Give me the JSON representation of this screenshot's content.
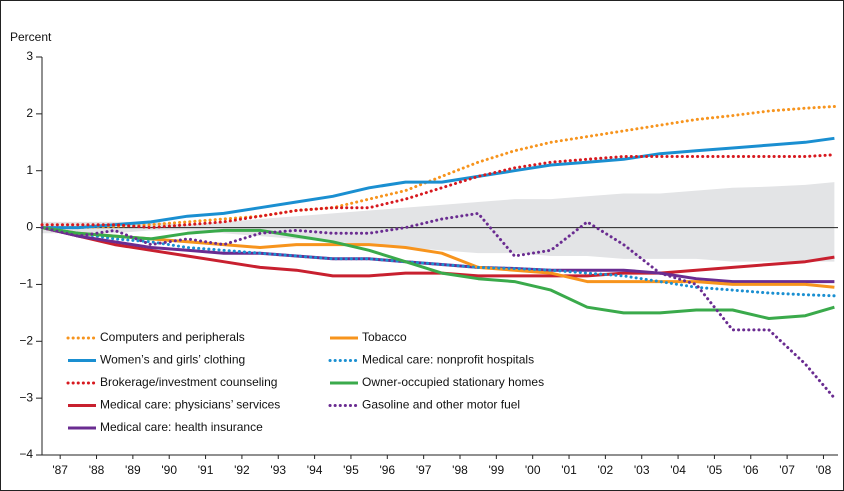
{
  "chart_data": {
    "type": "line",
    "y_label": "Percent",
    "x": [
      1987,
      1988,
      1989,
      1990,
      1991,
      1992,
      1993,
      1994,
      1995,
      1996,
      1997,
      1998,
      1999,
      2000,
      2001,
      2002,
      2003,
      2004,
      2005,
      2006,
      2007,
      2008,
      2008.8
    ],
    "xlim": [
      1987,
      2008.9
    ],
    "xticks": [
      {
        "value": 1987.5,
        "label": "'87"
      },
      {
        "value": 1988.5,
        "label": "'88"
      },
      {
        "value": 1989.5,
        "label": "'89"
      },
      {
        "value": 1990.5,
        "label": "'90"
      },
      {
        "value": 1991.5,
        "label": "'91"
      },
      {
        "value": 1992.5,
        "label": "'92"
      },
      {
        "value": 1993.5,
        "label": "'93"
      },
      {
        "value": 1994.5,
        "label": "'94"
      },
      {
        "value": 1995.5,
        "label": "'95"
      },
      {
        "value": 1996.5,
        "label": "'96"
      },
      {
        "value": 1997.5,
        "label": "'97"
      },
      {
        "value": 1998.5,
        "label": "'98"
      },
      {
        "value": 1999.5,
        "label": "'99"
      },
      {
        "value": 2000.5,
        "label": "'00"
      },
      {
        "value": 2001.5,
        "label": "'01"
      },
      {
        "value": 2002.5,
        "label": "'02"
      },
      {
        "value": 2003.5,
        "label": "'03"
      },
      {
        "value": 2004.5,
        "label": "'04"
      },
      {
        "value": 2005.5,
        "label": "'05"
      },
      {
        "value": 2006.5,
        "label": "'06"
      },
      {
        "value": 2007.5,
        "label": "'07"
      },
      {
        "value": 2008.5,
        "label": "'08"
      }
    ],
    "ylim": [
      -4,
      3
    ],
    "yticks": [
      {
        "value": -4,
        "label": "−4"
      },
      {
        "value": -3,
        "label": "−3"
      },
      {
        "value": -2,
        "label": "−2"
      },
      {
        "value": -1,
        "label": "−1"
      },
      0,
      1,
      2,
      3
    ],
    "zero_line": true,
    "legend_position": "lower left",
    "band": {
      "color": "#e3e4e6",
      "upper": [
        0.1,
        0.1,
        0.1,
        0.1,
        0.05,
        0.1,
        0.15,
        0.2,
        0.25,
        0.3,
        0.35,
        0.4,
        0.45,
        0.5,
        0.5,
        0.55,
        0.6,
        0.6,
        0.65,
        0.7,
        0.72,
        0.75,
        0.8
      ],
      "lower": [
        -0.1,
        -0.1,
        -0.1,
        -0.05,
        -0.05,
        -0.1,
        -0.15,
        -0.2,
        -0.25,
        -0.3,
        -0.35,
        -0.4,
        -0.45,
        -0.45,
        -0.5,
        -0.5,
        -0.55,
        -0.55,
        -0.55,
        -0.6,
        -0.6,
        -0.6,
        -0.6
      ]
    },
    "series": [
      {
        "name": "Computers and peripherals",
        "color": "#f7941d",
        "dashed": true,
        "values": [
          0,
          0,
          0.02,
          0.05,
          0.1,
          0.15,
          0.2,
          0.3,
          0.35,
          0.5,
          0.65,
          0.9,
          1.15,
          1.35,
          1.5,
          1.6,
          1.7,
          1.8,
          1.9,
          1.97,
          2.05,
          2.1,
          2.13
        ]
      },
      {
        "name": "Women’s and girls’ clothing",
        "color": "#1a8fd1",
        "dashed": false,
        "values": [
          0,
          0,
          0.05,
          0.1,
          0.2,
          0.25,
          0.35,
          0.45,
          0.55,
          0.7,
          0.8,
          0.8,
          0.9,
          1.0,
          1.1,
          1.15,
          1.2,
          1.3,
          1.35,
          1.4,
          1.45,
          1.5,
          1.57
        ]
      },
      {
        "name": "Brokerage/investment counseling",
        "color": "#d7191f",
        "dashed": true,
        "values": [
          0.05,
          0.05,
          0.05,
          0,
          0.05,
          0.1,
          0.2,
          0.3,
          0.35,
          0.35,
          0.5,
          0.7,
          0.9,
          1.05,
          1.15,
          1.2,
          1.25,
          1.25,
          1.25,
          1.25,
          1.25,
          1.25,
          1.28
        ]
      },
      {
        "name": "Medical care: physicians’ services",
        "color": "#c8202f",
        "dashed": false,
        "values": [
          0,
          -0.15,
          -0.3,
          -0.4,
          -0.5,
          -0.6,
          -0.7,
          -0.75,
          -0.85,
          -0.85,
          -0.8,
          -0.8,
          -0.85,
          -0.85,
          -0.85,
          -0.85,
          -0.8,
          -0.8,
          -0.75,
          -0.7,
          -0.65,
          -0.6,
          -0.52
        ]
      },
      {
        "name": "Medical care: health insurance",
        "color": "#6a2c91",
        "dashed": false,
        "values": [
          0,
          -0.15,
          -0.25,
          -0.35,
          -0.4,
          -0.45,
          -0.45,
          -0.5,
          -0.55,
          -0.55,
          -0.6,
          -0.65,
          -0.7,
          -0.72,
          -0.75,
          -0.75,
          -0.75,
          -0.8,
          -0.9,
          -0.95,
          -0.95,
          -0.95,
          -0.95
        ]
      },
      {
        "name": "Tobacco",
        "color": "#f7941d",
        "dashed": false,
        "values": [
          0,
          -0.1,
          -0.15,
          -0.2,
          -0.25,
          -0.3,
          -0.35,
          -0.3,
          -0.3,
          -0.3,
          -0.35,
          -0.45,
          -0.7,
          -0.75,
          -0.8,
          -0.95,
          -0.95,
          -0.95,
          -0.95,
          -1.0,
          -1.0,
          -1.0,
          -1.05
        ]
      },
      {
        "name": "Medical care: nonprofit hospitals",
        "color": "#1a8fd1",
        "dashed": true,
        "values": [
          0,
          -0.1,
          -0.2,
          -0.25,
          -0.35,
          -0.4,
          -0.45,
          -0.5,
          -0.55,
          -0.55,
          -0.6,
          -0.65,
          -0.7,
          -0.72,
          -0.75,
          -0.8,
          -0.85,
          -0.95,
          -1.05,
          -1.1,
          -1.15,
          -1.18,
          -1.2
        ]
      },
      {
        "name": "Owner-occupied stationary homes",
        "color": "#3aaa4b",
        "dashed": false,
        "values": [
          0,
          -0.1,
          -0.15,
          -0.2,
          -0.1,
          -0.05,
          -0.05,
          -0.15,
          -0.25,
          -0.4,
          -0.6,
          -0.8,
          -0.9,
          -0.95,
          -1.1,
          -1.4,
          -1.5,
          -1.5,
          -1.45,
          -1.45,
          -1.6,
          -1.55,
          -1.4
        ]
      },
      {
        "name": "Gasoline and other motor fuel",
        "color": "#6a2c91",
        "dashed": true,
        "values": [
          0,
          -0.15,
          -0.05,
          -0.3,
          -0.2,
          -0.3,
          -0.1,
          -0.05,
          -0.1,
          -0.1,
          0.0,
          0.15,
          0.25,
          -0.5,
          -0.4,
          0.1,
          -0.3,
          -0.8,
          -1.0,
          -1.8,
          -1.8,
          -2.4,
          -3.0
        ]
      }
    ]
  }
}
